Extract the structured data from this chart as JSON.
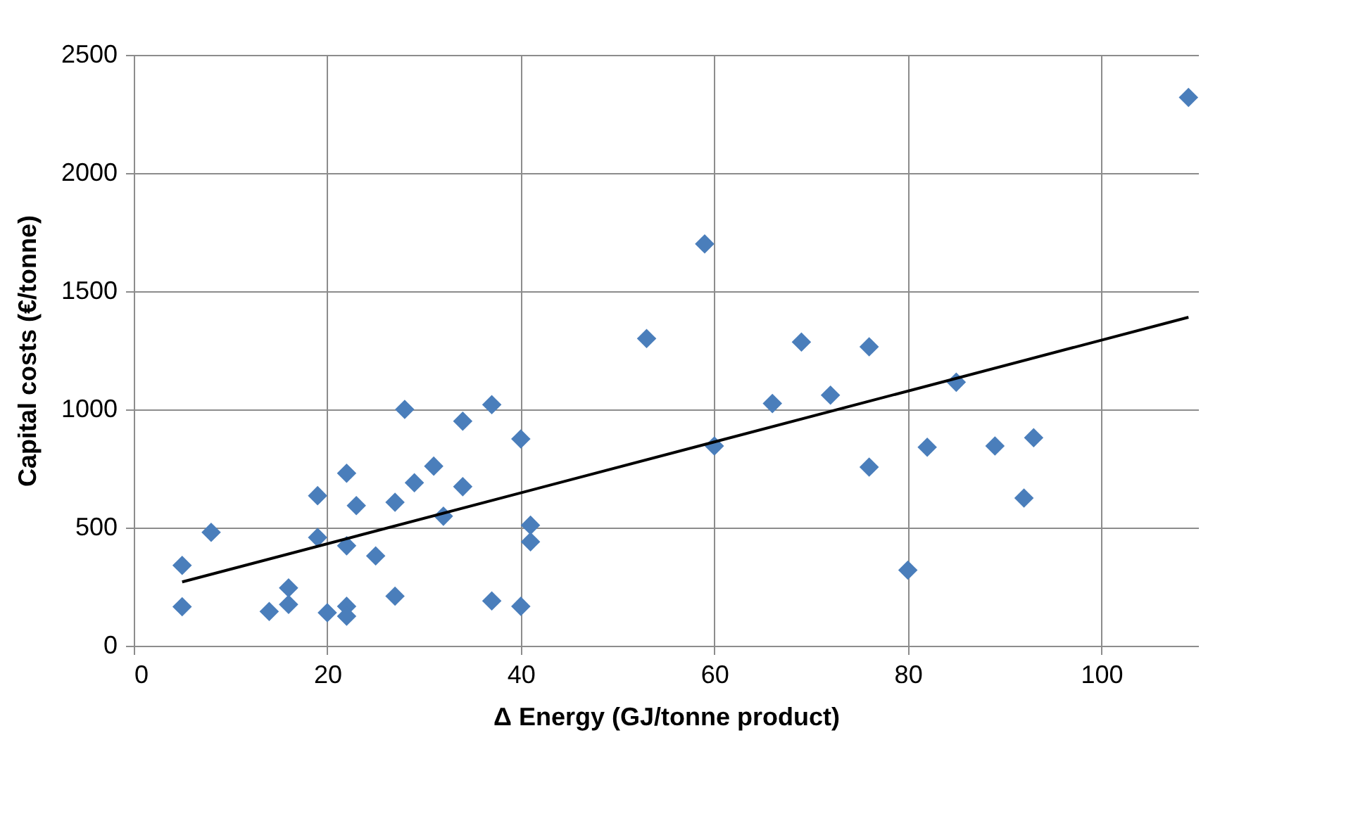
{
  "chart_data": {
    "type": "scatter",
    "xlabel": "Δ Energy (GJ/tonne product)",
    "ylabel": "Capital costs (€/tonne)",
    "xlim": [
      0,
      110
    ],
    "xticks": [
      0,
      20,
      40,
      60,
      80,
      100
    ],
    "ylim": [
      0,
      2500
    ],
    "yticks": [
      0,
      500,
      1000,
      1500,
      2000,
      2500
    ],
    "grid": true,
    "series": [
      {
        "color": "#4a7ebb",
        "marker": "diamond",
        "x": [
          5,
          5,
          8,
          14,
          16,
          16,
          19,
          19,
          20,
          22,
          22,
          22,
          22,
          23,
          25,
          27,
          27,
          28,
          29,
          31,
          32,
          34,
          34,
          37,
          37,
          40,
          40,
          41,
          41,
          53,
          59,
          60,
          66,
          69,
          72,
          76,
          76,
          80,
          82,
          85,
          89,
          92,
          93,
          109
        ],
        "values": [
          340,
          165,
          480,
          145,
          245,
          175,
          635,
          458,
          140,
          730,
          423,
          167,
          125,
          593,
          380,
          607,
          210,
          1000,
          690,
          760,
          548,
          950,
          673,
          1020,
          190,
          875,
          167,
          510,
          440,
          1300,
          1700,
          845,
          1025,
          1285,
          1060,
          1265,
          756,
          320,
          840,
          1115,
          845,
          625,
          880,
          2320
        ]
      },
      {
        "type": "line",
        "color": "#000000",
        "marker": "none",
        "x": [
          5,
          109
        ],
        "values": [
          270,
          1390
        ]
      }
    ]
  }
}
